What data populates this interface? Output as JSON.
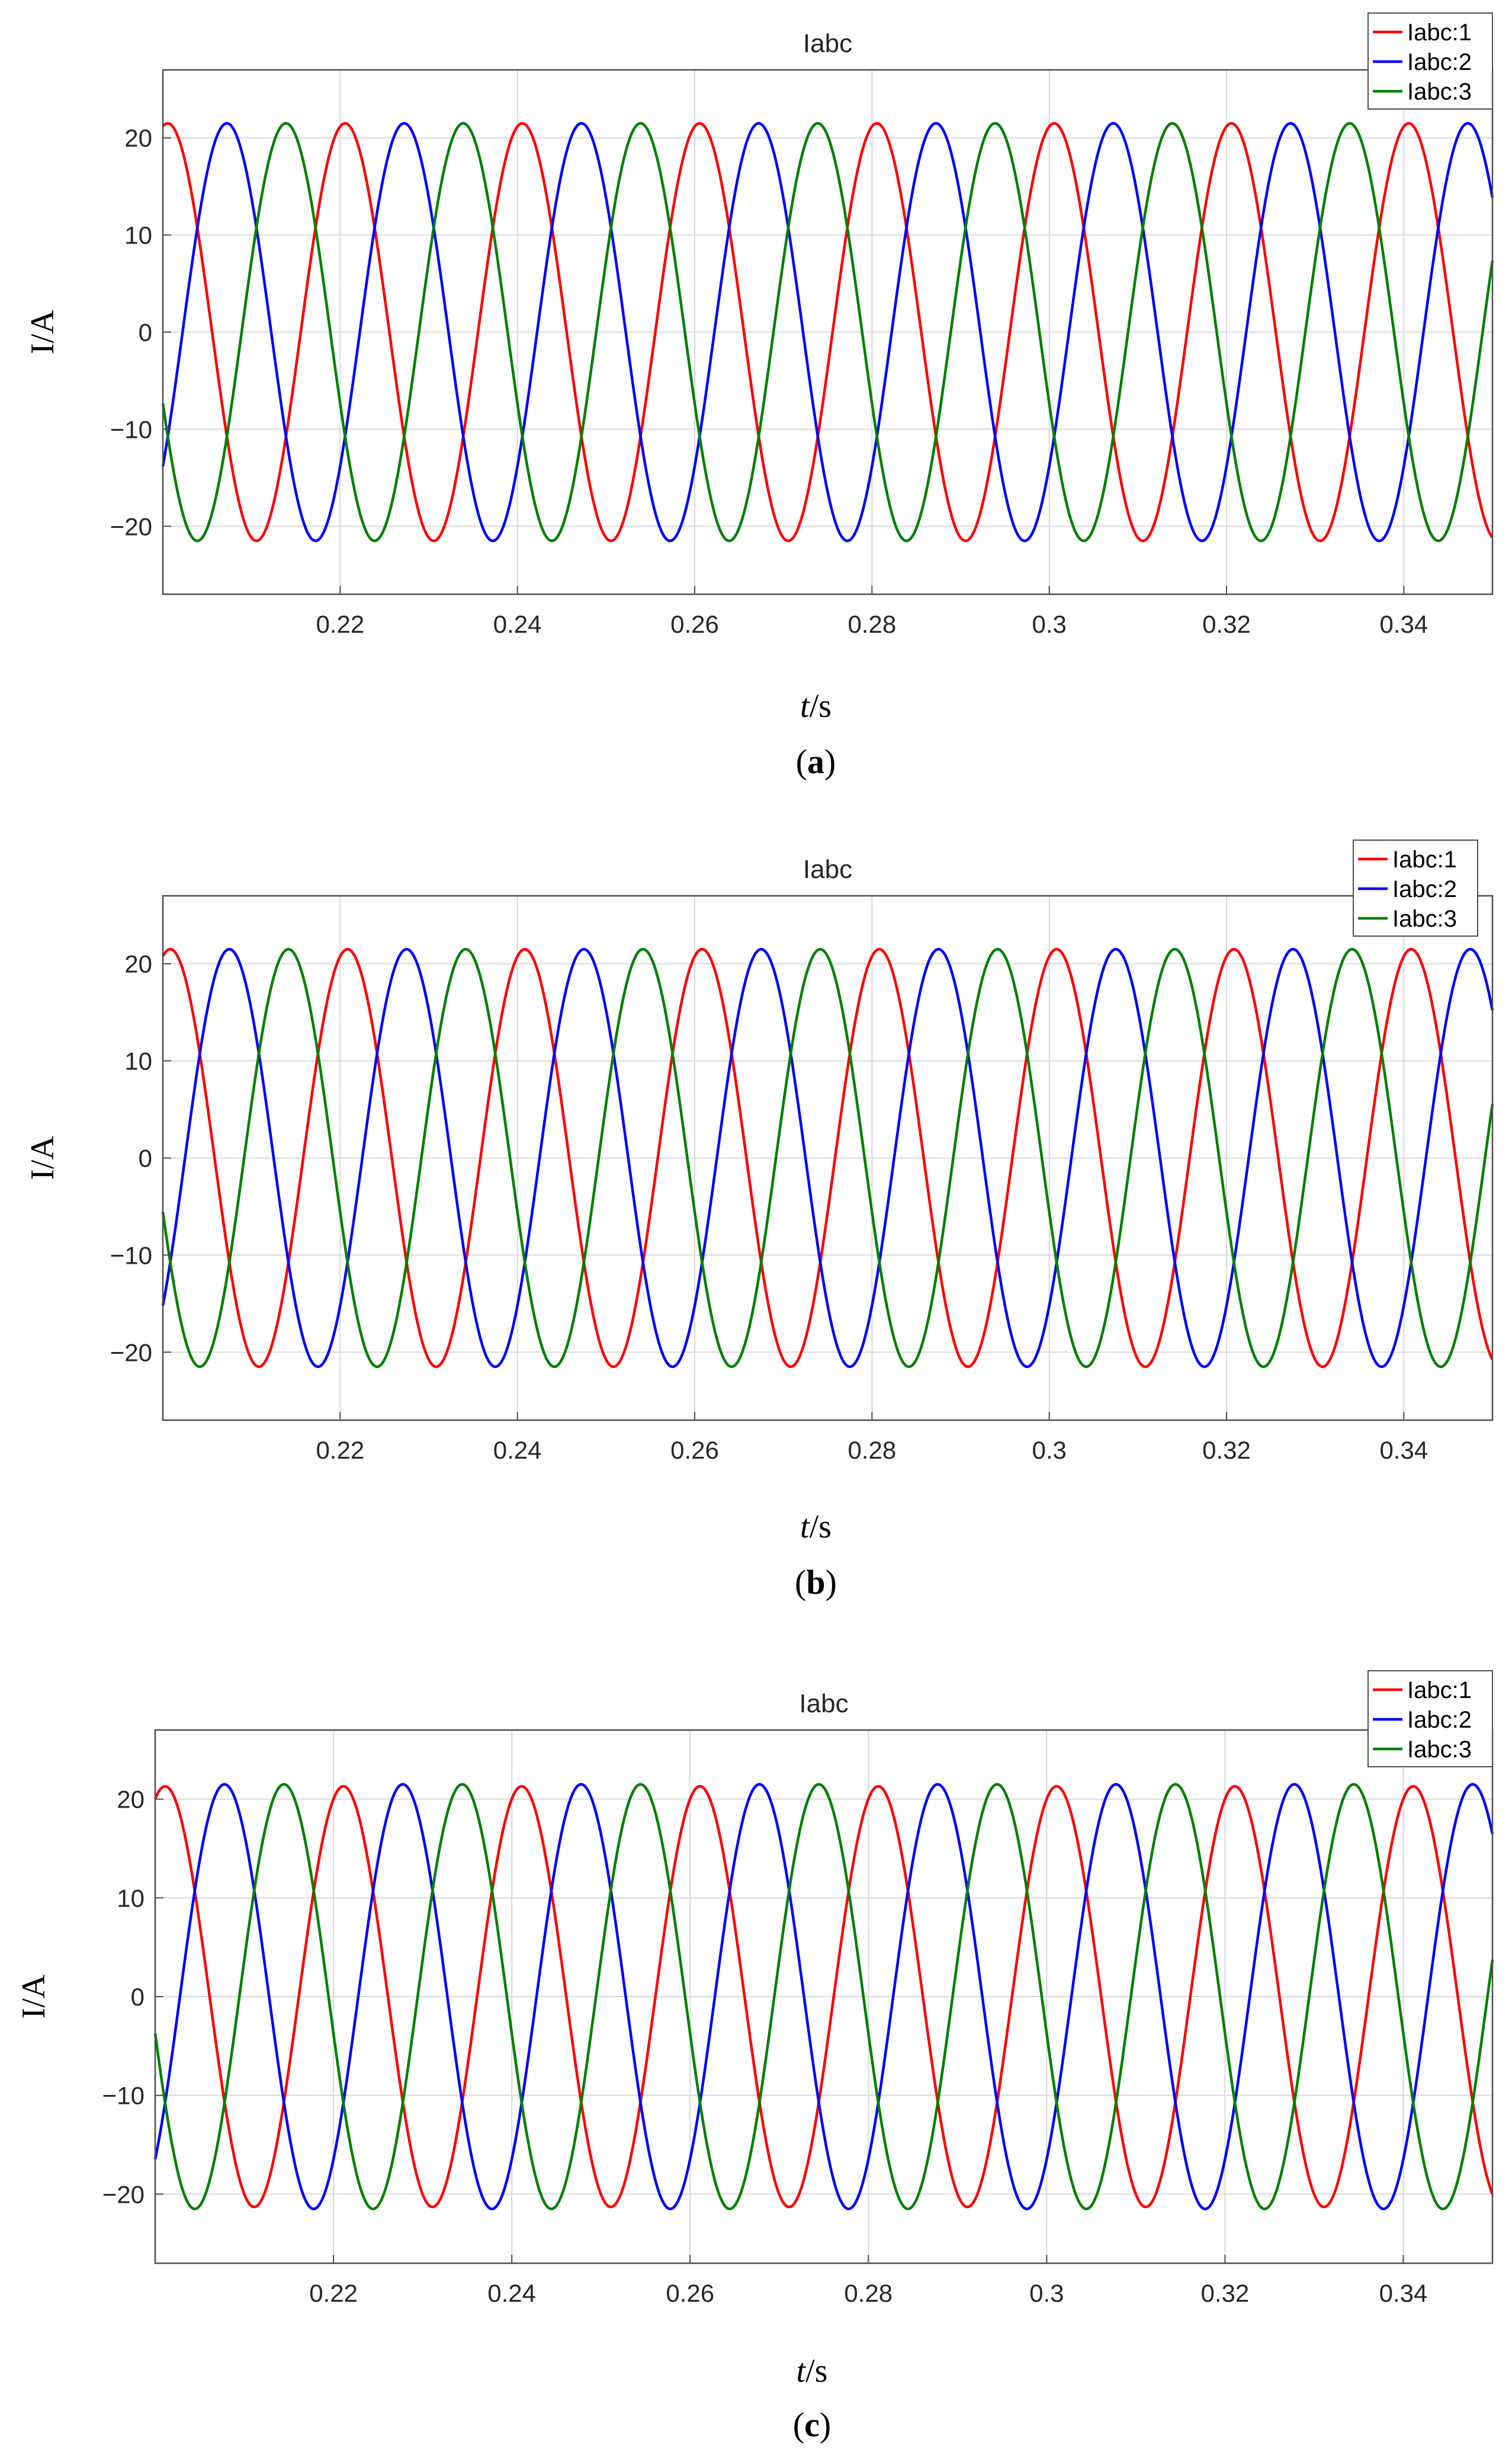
{
  "figure": {
    "background": "#ffffff",
    "grid_color": "#d9d9d9",
    "axes_color": "#4d4d4d"
  },
  "chart_data": [
    {
      "type": "line",
      "caption": "a",
      "title": "Iabc",
      "xlabel_var": "t",
      "xlabel_unit": "/s",
      "ylabel": "I/A",
      "xlim": [
        0.2,
        0.35
      ],
      "ylim": [
        -27,
        27
      ],
      "xticks": [
        0.22,
        0.24,
        0.26,
        0.28,
        0.3,
        0.32,
        0.34
      ],
      "xtick_labels": [
        "0.22",
        "0.24",
        "0.26",
        "0.28",
        "0.3",
        "0.32",
        "0.34"
      ],
      "yticks": [
        -20,
        -10,
        0,
        10,
        20
      ],
      "ytick_labels": [
        "-20",
        "-10",
        "0",
        "10",
        "20"
      ],
      "grid": true,
      "legend": "top-right",
      "frequency_hz": 50,
      "series": [
        {
          "name": "Iabc:1",
          "color": "#ff0000",
          "amplitude": 21.5,
          "phase_deg": 80
        },
        {
          "name": "Iabc:2",
          "color": "#0000ff",
          "amplitude": 21.5,
          "phase_deg": -40
        },
        {
          "name": "Iabc:3",
          "color": "#008000",
          "amplitude": 21.5,
          "phase_deg": 200
        }
      ]
    },
    {
      "type": "line",
      "caption": "b",
      "title": "Iabc",
      "xlabel_var": "t",
      "xlabel_unit": "/s",
      "ylabel": "I/A",
      "xlim": [
        0.2,
        0.35
      ],
      "ylim": [
        -27,
        27
      ],
      "xticks": [
        0.22,
        0.24,
        0.26,
        0.28,
        0.3,
        0.32,
        0.34
      ],
      "xtick_labels": [
        "0.22",
        "0.24",
        "0.26",
        "0.28",
        "0.3",
        "0.32",
        "0.34"
      ],
      "yticks": [
        -20,
        -10,
        0,
        10,
        20
      ],
      "ytick_labels": [
        "-20",
        "-10",
        "0",
        "10",
        "20"
      ],
      "grid": true,
      "legend": "top-right",
      "frequency_hz": 50,
      "series": [
        {
          "name": "Iabc:1",
          "color": "#ff0000",
          "amplitude": 21.5,
          "phase_deg": 75
        },
        {
          "name": "Iabc:2",
          "color": "#0000ff",
          "amplitude": 21.5,
          "phase_deg": -45
        },
        {
          "name": "Iabc:3",
          "color": "#008000",
          "amplitude": 21.5,
          "phase_deg": 195
        }
      ]
    },
    {
      "type": "line",
      "caption": "c",
      "title": "Iabc",
      "xlabel_var": "t",
      "xlabel_unit": "/s",
      "ylabel": "I/A",
      "xlim": [
        0.2,
        0.35
      ],
      "ylim": [
        -27,
        27
      ],
      "xticks": [
        0.22,
        0.24,
        0.26,
        0.28,
        0.3,
        0.32,
        0.34
      ],
      "xtick_labels": [
        "0.22",
        "0.24",
        "0.26",
        "0.28",
        "0.3",
        "0.32",
        "0.34"
      ],
      "yticks": [
        -20,
        -10,
        0,
        10,
        20
      ],
      "ytick_labels": [
        "-20",
        "-10",
        "0",
        "10",
        "20"
      ],
      "grid": true,
      "legend": "top-right",
      "frequency_hz": 50,
      "series": [
        {
          "name": "Iabc:1",
          "color": "#ff0000",
          "amplitude": 21.3,
          "phase_deg": 70
        },
        {
          "name": "Iabc:2",
          "color": "#0000ff",
          "amplitude": 21.5,
          "phase_deg": -50
        },
        {
          "name": "Iabc:3",
          "color": "#008000",
          "amplitude": 21.5,
          "phase_deg": 190
        }
      ]
    }
  ]
}
